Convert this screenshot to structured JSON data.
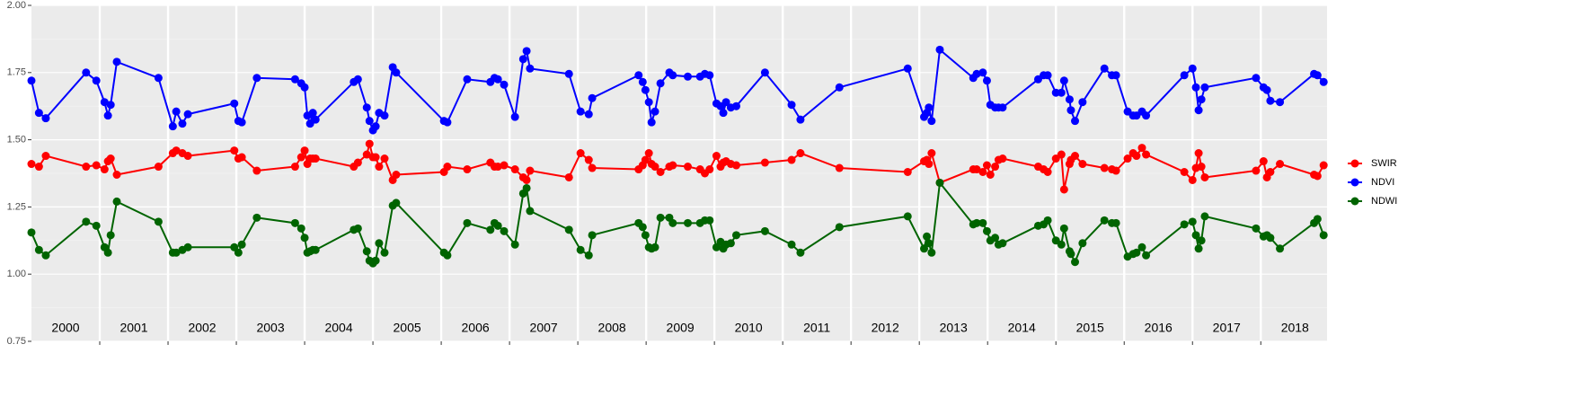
{
  "chart_data": {
    "type": "line",
    "x": [
      2000.0,
      2000.11,
      2000.21,
      2000.8,
      2000.95,
      2001.07,
      2001.12,
      2001.16,
      2001.25,
      2001.86,
      2002.07,
      2002.12,
      2002.21,
      2002.29,
      2002.97,
      2003.03,
      2003.08,
      2003.3,
      2003.86,
      2003.95,
      2004.0,
      2004.04,
      2004.08,
      2004.12,
      2004.16,
      2004.72,
      2004.78,
      2004.91,
      2004.95,
      2005.0,
      2005.04,
      2005.09,
      2005.17,
      2005.29,
      2005.34,
      2006.04,
      2006.09,
      2006.38,
      2006.72,
      2006.78,
      2006.83,
      2006.92,
      2007.08,
      2007.2,
      2007.25,
      2007.3,
      2007.87,
      2008.04,
      2008.16,
      2008.21,
      2008.89,
      2008.95,
      2008.99,
      2009.04,
      2009.08,
      2009.13,
      2009.21,
      2009.34,
      2009.39,
      2009.61,
      2009.79,
      2009.86,
      2009.93,
      2010.03,
      2010.09,
      2010.13,
      2010.17,
      2010.24,
      2010.32,
      2010.74,
      2011.13,
      2011.26,
      2011.83,
      2012.83,
      2013.07,
      2013.11,
      2013.14,
      2013.18,
      2013.3,
      2013.79,
      2013.84,
      2013.93,
      2013.99,
      2014.04,
      2014.11,
      2014.16,
      2014.22,
      2014.74,
      2014.82,
      2014.88,
      2015.0,
      2015.08,
      2015.12,
      2015.2,
      2015.22,
      2015.28,
      2015.39,
      2015.71,
      2015.82,
      2015.88,
      2016.05,
      2016.13,
      2016.18,
      2016.26,
      2016.32,
      2016.88,
      2017.0,
      2017.05,
      2017.09,
      2017.13,
      2017.18,
      2017.93,
      2018.04,
      2018.09,
      2018.14,
      2018.28,
      2018.78,
      2018.83,
      2018.92
    ],
    "series": [
      {
        "name": "SWIR",
        "color": "#ff0000",
        "values": [
          1.41,
          1.4,
          1.44,
          1.4,
          1.405,
          1.39,
          1.42,
          1.43,
          1.37,
          1.4,
          1.45,
          1.46,
          1.45,
          1.44,
          1.46,
          1.43,
          1.435,
          1.385,
          1.4,
          1.435,
          1.46,
          1.41,
          1.43,
          1.43,
          1.43,
          1.4,
          1.415,
          1.445,
          1.485,
          1.435,
          1.435,
          1.4,
          1.43,
          1.35,
          1.37,
          1.38,
          1.4,
          1.39,
          1.415,
          1.4,
          1.4,
          1.405,
          1.39,
          1.36,
          1.35,
          1.385,
          1.36,
          1.45,
          1.425,
          1.395,
          1.39,
          1.405,
          1.425,
          1.45,
          1.41,
          1.4,
          1.38,
          1.4,
          1.405,
          1.4,
          1.39,
          1.375,
          1.39,
          1.44,
          1.4,
          1.415,
          1.42,
          1.41,
          1.405,
          1.415,
          1.425,
          1.45,
          1.395,
          1.38,
          1.42,
          1.425,
          1.41,
          1.45,
          1.34,
          1.39,
          1.39,
          1.38,
          1.405,
          1.37,
          1.4,
          1.425,
          1.43,
          1.4,
          1.39,
          1.38,
          1.43,
          1.445,
          1.315,
          1.41,
          1.425,
          1.44,
          1.41,
          1.395,
          1.39,
          1.385,
          1.43,
          1.45,
          1.44,
          1.47,
          1.445,
          1.38,
          1.35,
          1.395,
          1.45,
          1.4,
          1.36,
          1.385,
          1.42,
          1.36,
          1.38,
          1.41,
          1.37,
          1.365,
          1.405
        ]
      },
      {
        "name": "NDVI",
        "color": "#0000ff",
        "values": [
          1.72,
          1.6,
          1.58,
          1.75,
          1.72,
          1.64,
          1.59,
          1.63,
          1.79,
          1.73,
          1.55,
          1.605,
          1.56,
          1.595,
          1.635,
          1.57,
          1.565,
          1.73,
          1.725,
          1.71,
          1.695,
          1.59,
          1.56,
          1.6,
          1.575,
          1.715,
          1.725,
          1.62,
          1.57,
          1.535,
          1.55,
          1.6,
          1.59,
          1.77,
          1.75,
          1.57,
          1.565,
          1.725,
          1.715,
          1.73,
          1.725,
          1.705,
          1.585,
          1.8,
          1.83,
          1.765,
          1.745,
          1.605,
          1.595,
          1.655,
          1.74,
          1.715,
          1.685,
          1.64,
          1.565,
          1.605,
          1.71,
          1.75,
          1.74,
          1.735,
          1.735,
          1.745,
          1.74,
          1.635,
          1.625,
          1.6,
          1.64,
          1.62,
          1.625,
          1.75,
          1.63,
          1.575,
          1.695,
          1.765,
          1.585,
          1.6,
          1.62,
          1.57,
          1.835,
          1.73,
          1.745,
          1.75,
          1.72,
          1.63,
          1.62,
          1.62,
          1.62,
          1.725,
          1.74,
          1.74,
          1.675,
          1.675,
          1.72,
          1.65,
          1.61,
          1.57,
          1.64,
          1.765,
          1.74,
          1.74,
          1.605,
          1.59,
          1.59,
          1.605,
          1.59,
          1.74,
          1.765,
          1.695,
          1.61,
          1.65,
          1.695,
          1.73,
          1.695,
          1.685,
          1.645,
          1.64,
          1.745,
          1.74,
          1.715
        ]
      },
      {
        "name": "NDWI",
        "color": "#006400",
        "values": [
          1.155,
          1.09,
          1.07,
          1.195,
          1.18,
          1.1,
          1.08,
          1.145,
          1.27,
          1.195,
          1.08,
          1.08,
          1.09,
          1.1,
          1.1,
          1.08,
          1.11,
          1.21,
          1.19,
          1.17,
          1.135,
          1.08,
          1.085,
          1.09,
          1.09,
          1.165,
          1.17,
          1.085,
          1.05,
          1.04,
          1.05,
          1.115,
          1.08,
          1.255,
          1.265,
          1.08,
          1.07,
          1.19,
          1.165,
          1.19,
          1.18,
          1.16,
          1.11,
          1.3,
          1.32,
          1.235,
          1.165,
          1.09,
          1.07,
          1.145,
          1.19,
          1.175,
          1.145,
          1.1,
          1.095,
          1.1,
          1.21,
          1.21,
          1.19,
          1.19,
          1.19,
          1.2,
          1.2,
          1.1,
          1.12,
          1.095,
          1.11,
          1.115,
          1.145,
          1.16,
          1.11,
          1.08,
          1.175,
          1.215,
          1.095,
          1.14,
          1.115,
          1.08,
          1.34,
          1.185,
          1.19,
          1.19,
          1.16,
          1.125,
          1.135,
          1.11,
          1.115,
          1.18,
          1.185,
          1.2,
          1.125,
          1.11,
          1.17,
          1.085,
          1.075,
          1.045,
          1.115,
          1.2,
          1.19,
          1.19,
          1.065,
          1.075,
          1.08,
          1.1,
          1.07,
          1.185,
          1.195,
          1.145,
          1.095,
          1.125,
          1.215,
          1.17,
          1.14,
          1.145,
          1.135,
          1.095,
          1.19,
          1.205,
          1.145
        ]
      }
    ],
    "xlim": [
      2000,
      2018.97
    ],
    "xticks": [
      2001,
      2002,
      2003,
      2004,
      2005,
      2006,
      2007,
      2008,
      2009,
      2010,
      2011,
      2012,
      2013,
      2014,
      2015,
      2016,
      2017,
      2018
    ],
    "year_labels": [
      {
        "value": 2000.5,
        "label": "2000"
      },
      {
        "value": 2001.5,
        "label": "2001"
      },
      {
        "value": 2002.5,
        "label": "2002"
      },
      {
        "value": 2003.5,
        "label": "2003"
      },
      {
        "value": 2004.5,
        "label": "2004"
      },
      {
        "value": 2005.5,
        "label": "2005"
      },
      {
        "value": 2006.5,
        "label": "2006"
      },
      {
        "value": 2007.5,
        "label": "2007"
      },
      {
        "value": 2008.5,
        "label": "2008"
      },
      {
        "value": 2009.5,
        "label": "2009"
      },
      {
        "value": 2010.5,
        "label": "2010"
      },
      {
        "value": 2011.5,
        "label": "2011"
      },
      {
        "value": 2012.5,
        "label": "2012"
      },
      {
        "value": 2013.5,
        "label": "2013"
      },
      {
        "value": 2014.5,
        "label": "2014"
      },
      {
        "value": 2015.5,
        "label": "2015"
      },
      {
        "value": 2016.5,
        "label": "2016"
      },
      {
        "value": 2017.5,
        "label": "2017"
      },
      {
        "value": 2018.5,
        "label": "2018"
      }
    ],
    "ylim": [
      0.75,
      2.0
    ],
    "yticks": [
      {
        "value": 0.75,
        "label": "0.75"
      },
      {
        "value": 1,
        "label": "1.00"
      },
      {
        "value": 1.25,
        "label": "1.25"
      },
      {
        "value": 1.5,
        "label": "1.50"
      },
      {
        "value": 1.75,
        "label": "1.75"
      },
      {
        "value": 2,
        "label": "2.00"
      }
    ],
    "grid": true,
    "legend": "right"
  }
}
